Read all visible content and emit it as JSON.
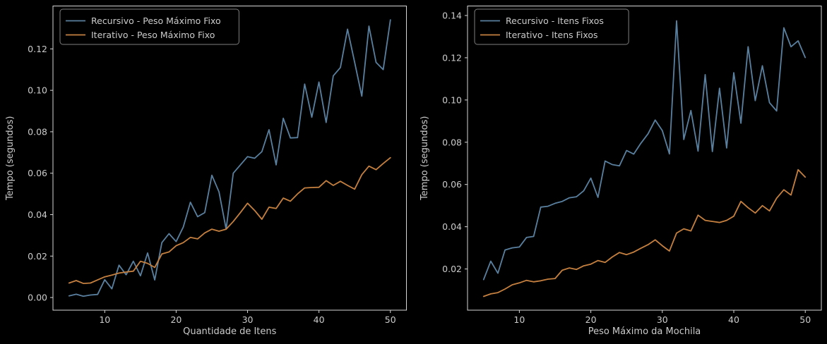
{
  "figure": {
    "background": "#000000",
    "text_color": "#cbcbcb",
    "spine_color": "#d6d6d6",
    "legend_border_color": "#7e7e7e",
    "legend_bg": "#000000"
  },
  "chart_data": [
    {
      "type": "line",
      "title": "",
      "xlabel": "Quantidade de Itens",
      "ylabel": "Tempo (segundos)",
      "xlim": [
        2.75,
        52.25
      ],
      "ylim": [
        -0.0061,
        0.1407
      ],
      "xticks": [
        10,
        20,
        30,
        40,
        50
      ],
      "yticks": [
        0.0,
        0.02,
        0.04,
        0.06,
        0.08,
        0.1,
        0.12
      ],
      "grid": false,
      "legend_position": "upper-left",
      "x": [
        5,
        6,
        7,
        8,
        9,
        10,
        11,
        12,
        13,
        14,
        15,
        16,
        17,
        18,
        19,
        20,
        21,
        22,
        23,
        24,
        25,
        26,
        27,
        28,
        29,
        30,
        31,
        32,
        33,
        34,
        35,
        36,
        37,
        38,
        39,
        40,
        41,
        42,
        43,
        44,
        45,
        46,
        47,
        48,
        49,
        50
      ],
      "series": [
        {
          "name": "Recursivo - Peso Máximo Fixo",
          "color": "#5a80a0",
          "values": [
            0.0008,
            0.0016,
            0.0006,
            0.0012,
            0.0015,
            0.0086,
            0.0042,
            0.0156,
            0.011,
            0.0175,
            0.0105,
            0.0215,
            0.0085,
            0.0265,
            0.0308,
            0.027,
            0.034,
            0.046,
            0.039,
            0.041,
            0.059,
            0.051,
            0.033,
            0.06,
            0.064,
            0.068,
            0.0672,
            0.0704,
            0.081,
            0.064,
            0.0865,
            0.077,
            0.0772,
            0.103,
            0.087,
            0.104,
            0.0845,
            0.107,
            0.111,
            0.1295,
            0.1135,
            0.0972,
            0.131,
            0.1135,
            0.11,
            0.134
          ]
        },
        {
          "name": "Iterativo - Peso Máximo Fixo",
          "color": "#c5803f",
          "values": [
            0.007,
            0.0082,
            0.0068,
            0.007,
            0.0085,
            0.01,
            0.0108,
            0.0118,
            0.0123,
            0.0127,
            0.0175,
            0.0165,
            0.0145,
            0.021,
            0.022,
            0.025,
            0.0265,
            0.029,
            0.0283,
            0.0312,
            0.033,
            0.032,
            0.033,
            0.0367,
            0.041,
            0.0455,
            0.042,
            0.0378,
            0.0436,
            0.043,
            0.048,
            0.0465,
            0.05,
            0.0529,
            0.0531,
            0.0532,
            0.0564,
            0.0541,
            0.0561,
            0.0541,
            0.0523,
            0.0593,
            0.0634,
            0.0617,
            0.0647,
            0.0675
          ]
        }
      ]
    },
    {
      "type": "line",
      "title": "",
      "xlabel": "Peso Máximo da Mochila",
      "ylabel": "Tempo (segundos)",
      "xlim": [
        2.75,
        52.25
      ],
      "ylim": [
        0.0005,
        0.1445
      ],
      "xticks": [
        10,
        20,
        30,
        40,
        50
      ],
      "yticks": [
        0.02,
        0.04,
        0.06,
        0.08,
        0.1,
        0.12,
        0.14
      ],
      "grid": false,
      "legend_position": "upper-left",
      "x": [
        5,
        6,
        7,
        8,
        9,
        10,
        11,
        12,
        13,
        14,
        15,
        16,
        17,
        18,
        19,
        20,
        21,
        22,
        23,
        24,
        25,
        26,
        27,
        28,
        29,
        30,
        31,
        32,
        33,
        34,
        35,
        36,
        37,
        38,
        39,
        40,
        41,
        42,
        43,
        44,
        45,
        46,
        47,
        48,
        49,
        50
      ],
      "series": [
        {
          "name": "Recursivo - Itens Fixos",
          "color": "#5a80a0",
          "values": [
            0.015,
            0.0237,
            0.018,
            0.029,
            0.03,
            0.0304,
            0.0349,
            0.0354,
            0.0493,
            0.0497,
            0.0511,
            0.052,
            0.0537,
            0.0542,
            0.057,
            0.063,
            0.0539,
            0.0711,
            0.0694,
            0.0688,
            0.0761,
            0.0744,
            0.0795,
            0.084,
            0.0905,
            0.0855,
            0.0745,
            0.1375,
            0.0813,
            0.095,
            0.0758,
            0.112,
            0.0756,
            0.1056,
            0.0773,
            0.1129,
            0.089,
            0.1252,
            0.0997,
            0.1162,
            0.0987,
            0.0948,
            0.1342,
            0.1252,
            0.128,
            0.1201
          ]
        },
        {
          "name": "Iterativo - Itens Fixos",
          "color": "#c5803f",
          "values": [
            0.007,
            0.0082,
            0.0088,
            0.0105,
            0.0125,
            0.0134,
            0.0146,
            0.0139,
            0.0144,
            0.0152,
            0.0155,
            0.0194,
            0.0205,
            0.0198,
            0.0215,
            0.0223,
            0.024,
            0.0231,
            0.0257,
            0.0278,
            0.0268,
            0.028,
            0.0298,
            0.0315,
            0.0338,
            0.031,
            0.0285,
            0.037,
            0.039,
            0.038,
            0.0455,
            0.043,
            0.0425,
            0.042,
            0.043,
            0.045,
            0.052,
            0.049,
            0.0465,
            0.05,
            0.0475,
            0.0535,
            0.0575,
            0.055,
            0.067,
            0.0635
          ]
        }
      ]
    }
  ]
}
